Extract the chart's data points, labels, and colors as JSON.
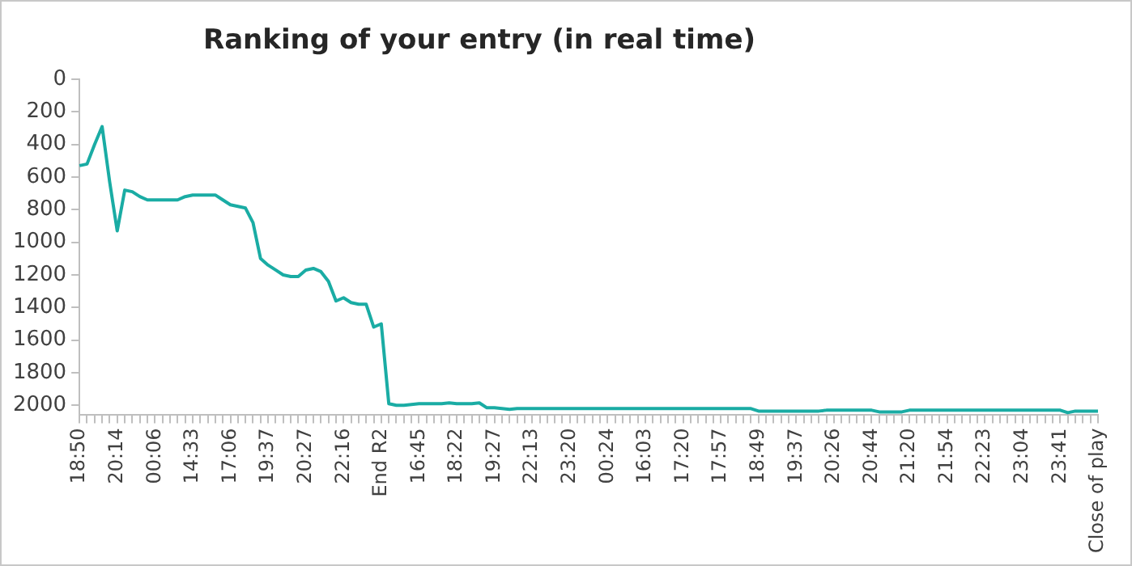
{
  "chart_data": {
    "type": "line",
    "title": "Ranking of your entry (in real time)",
    "categories": [
      "18:50",
      null,
      null,
      null,
      null,
      "20:14",
      null,
      null,
      null,
      null,
      "00:06",
      null,
      null,
      null,
      null,
      "14:33",
      null,
      null,
      null,
      null,
      "17:06",
      null,
      null,
      null,
      null,
      "19:37",
      null,
      null,
      null,
      null,
      "20:27",
      null,
      null,
      null,
      null,
      "22:16",
      null,
      null,
      null,
      null,
      "End R2",
      null,
      null,
      null,
      null,
      "16:45",
      null,
      null,
      null,
      null,
      "18:22",
      null,
      null,
      null,
      null,
      "19:27",
      null,
      null,
      null,
      null,
      "22:13",
      null,
      null,
      null,
      null,
      "23:20",
      null,
      null,
      null,
      null,
      "00:24",
      null,
      null,
      null,
      null,
      "16:03",
      null,
      null,
      null,
      null,
      "17:20",
      null,
      null,
      null,
      null,
      "17:57",
      null,
      null,
      null,
      null,
      "18:49",
      null,
      null,
      null,
      null,
      "19:37",
      null,
      null,
      null,
      null,
      "20:26",
      null,
      null,
      null,
      null,
      "20:44",
      null,
      null,
      null,
      null,
      "21:20",
      null,
      null,
      null,
      null,
      "21:54",
      null,
      null,
      null,
      null,
      "22:23",
      null,
      null,
      null,
      null,
      "23:04",
      null,
      null,
      null,
      null,
      "23:41",
      null,
      null,
      null,
      null,
      "Close of play"
    ],
    "series": [
      {
        "color": "#1aaca4",
        "values": [
          530,
          520,
          400,
          290,
          630,
          930,
          680,
          690,
          720,
          740,
          740,
          740,
          740,
          740,
          720,
          710,
          710,
          710,
          710,
          740,
          770,
          780,
          790,
          880,
          1100,
          1140,
          1170,
          1200,
          1210,
          1210,
          1170,
          1160,
          1180,
          1240,
          1360,
          1340,
          1370,
          1380,
          1380,
          1520,
          1500,
          1990,
          2000,
          2000,
          1995,
          1990,
          1990,
          1990,
          1990,
          1985,
          1990,
          1990,
          1990,
          1985,
          2015,
          2015,
          2020,
          2025,
          2020,
          2020,
          2020,
          2020,
          2020,
          2020,
          2020,
          2020,
          2020,
          2020,
          2020,
          2020,
          2020,
          2020,
          2020,
          2020,
          2020,
          2020,
          2020,
          2020,
          2020,
          2020,
          2020,
          2020,
          2020,
          2020,
          2020,
          2020,
          2020,
          2020,
          2020,
          2020,
          2035,
          2035,
          2035,
          2035,
          2035,
          2035,
          2035,
          2035,
          2035,
          2030,
          2030,
          2030,
          2030,
          2030,
          2030,
          2030,
          2040,
          2040,
          2040,
          2040,
          2030,
          2030,
          2030,
          2030,
          2030,
          2030,
          2030,
          2030,
          2030,
          2030,
          2030,
          2030,
          2030,
          2030,
          2030,
          2030,
          2030,
          2030,
          2030,
          2030,
          2030,
          2045,
          2035,
          2035,
          2035,
          2035
        ]
      }
    ],
    "ylim": [
      2060,
      0
    ],
    "yticks": [
      0,
      200,
      400,
      600,
      800,
      1000,
      1200,
      1400,
      1600,
      1800,
      2000
    ],
    "grid": false,
    "legend": false,
    "marker": "none",
    "line_style": "solid"
  }
}
